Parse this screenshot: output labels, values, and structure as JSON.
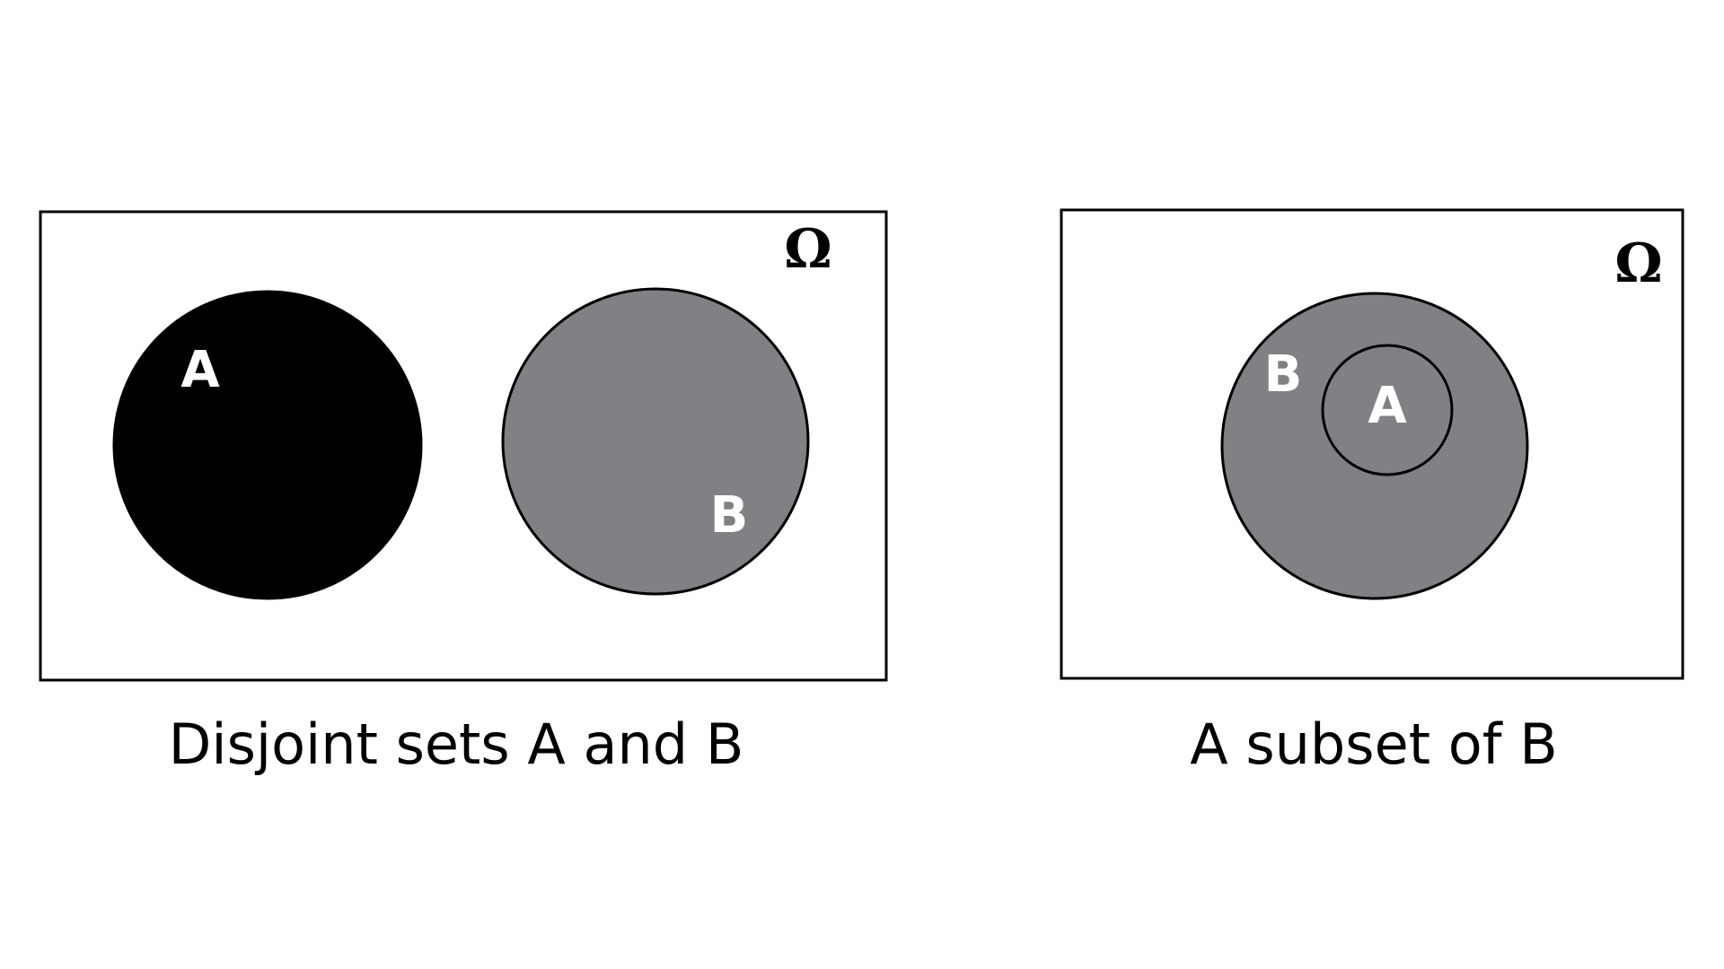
{
  "diagrams": [
    {
      "caption": "Disjoint sets A and B",
      "universe_label": "Ω",
      "sets": [
        {
          "label": "A",
          "fill": "#000000"
        },
        {
          "label": "B",
          "fill": "#808184"
        }
      ]
    },
    {
      "caption": "A subset of B",
      "universe_label": "Ω",
      "sets": [
        {
          "label": "B",
          "fill": "#808184"
        },
        {
          "label": "A",
          "fill": "#808184"
        }
      ]
    }
  ],
  "colors": {
    "outline": "#000000",
    "label_on_set": "#ffffff",
    "background": "#ffffff"
  }
}
